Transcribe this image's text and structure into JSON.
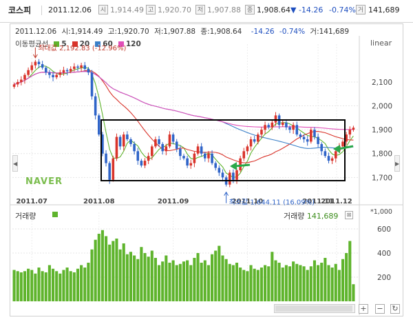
{
  "header": {
    "name": "코스피",
    "date": "2011.12.06",
    "open_badge": "시",
    "open": "1,914.49",
    "high_badge": "고",
    "high": "1,920.70",
    "low_badge": "저",
    "low": "1,907.88",
    "close_badge": "종",
    "close": "1,908.64",
    "change": "▼ -14.26",
    "change_pct": "-0.74%",
    "volume_badge": "거",
    "volume": "141,689"
  },
  "info_row": {
    "date": "2011.12.06",
    "open": "시:1,914.49",
    "high": "고:1,920.70",
    "low": "저:1,907.88",
    "close": "종:1,908.64",
    "change": "-14.26",
    "change_pct": "-0.74%",
    "volume": "거:141,689"
  },
  "legend": {
    "title": "이동평균선",
    "items": [
      {
        "label": "5",
        "color": "#5fb42d"
      },
      {
        "label": "20",
        "color": "#d9342b"
      },
      {
        "label": "60",
        "color": "#3a7fc8"
      },
      {
        "label": "120",
        "color": "#e04fb8"
      }
    ]
  },
  "scale_label": "linear",
  "watermark": "NAVER",
  "annotations": {
    "max_label": "최대값 2,192.83 (-12.96%)",
    "min_label": "최소값 1,644.11 (16.09%)"
  },
  "volume_panel": {
    "title": "거래량",
    "right_label": "거래량",
    "right_value": "141,689",
    "close_icon": "⊠",
    "unit": "*1,000"
  },
  "controls": {
    "left_arrow": "◀",
    "right_arrow": "▶",
    "zoom_in": "+",
    "zoom_out": "−",
    "refresh": "↻"
  },
  "colors": {
    "up": "#d9342b",
    "down": "#2f64c8",
    "volume": "#5fb42d",
    "ma5": "#5fb42d",
    "ma20": "#d9342b",
    "ma60": "#3a7fc8",
    "ma120": "#e04fb8",
    "highlight_box": "#000000",
    "arrows": "#2aa84a"
  },
  "chart_data": [
    {
      "type": "candlestick",
      "title": "코스피",
      "x_ticks": [
        "2011.07",
        "2011.08",
        "2011.09",
        "2011.10",
        "2011.11",
        "2011.12"
      ],
      "y_ticks": [
        1700,
        1800,
        1900,
        2000,
        2100
      ],
      "ylim": [
        1620,
        2230
      ],
      "scale": "linear",
      "grid": true,
      "close_series": [
        2090,
        2100,
        2110,
        2130,
        2150,
        2170,
        2185,
        2175,
        2160,
        2140,
        2130,
        2120,
        2130,
        2140,
        2150,
        2145,
        2155,
        2165,
        2160,
        2170,
        2155,
        2140,
        2040,
        1960,
        1880,
        1800,
        1760,
        1690,
        1780,
        1870,
        1830,
        1880,
        1860,
        1840,
        1810,
        1770,
        1750,
        1770,
        1790,
        1830,
        1860,
        1840,
        1810,
        1830,
        1880,
        1850,
        1820,
        1790,
        1780,
        1750,
        1760,
        1800,
        1830,
        1800,
        1780,
        1800,
        1760,
        1740,
        1720,
        1700,
        1670,
        1720,
        1690,
        1730,
        1780,
        1810,
        1830,
        1860,
        1850,
        1880,
        1900,
        1920,
        1910,
        1930,
        1960,
        1920,
        1930,
        1910,
        1900,
        1920,
        1880,
        1870,
        1860,
        1850,
        1900,
        1870,
        1840,
        1810,
        1790,
        1770,
        1780,
        1810,
        1830,
        1850,
        1880,
        1900,
        1908.64
      ],
      "moving_averages": [
        {
          "name": "5",
          "period": 5
        },
        {
          "name": "20",
          "period": 20
        },
        {
          "name": "60",
          "period": 60
        },
        {
          "name": "120",
          "period": 120
        }
      ],
      "annotations": [
        {
          "text": "최대값 2,192.83 (-12.96%)",
          "value": 2192.83
        },
        {
          "text": "최소값 1,644.11 (16.09%)",
          "value": 1644.11
        }
      ],
      "last_close": 1908.64,
      "last_change": -14.26,
      "last_change_pct": -0.74
    },
    {
      "type": "bar",
      "title": "거래량",
      "unit": "*1,000",
      "y_ticks": [
        200,
        400,
        600
      ],
      "ylim": [
        0,
        680
      ],
      "values": [
        260,
        250,
        240,
        250,
        270,
        260,
        230,
        280,
        250,
        240,
        300,
        270,
        250,
        230,
        260,
        280,
        250,
        240,
        270,
        300,
        280,
        320,
        430,
        510,
        560,
        590,
        540,
        470,
        500,
        520,
        430,
        480,
        390,
        410,
        380,
        350,
        450,
        400,
        370,
        420,
        360,
        300,
        330,
        380,
        320,
        340,
        300,
        310,
        330,
        340,
        300,
        360,
        400,
        320,
        340,
        300,
        390,
        420,
        460,
        380,
        350,
        310,
        300,
        320,
        280,
        260,
        250,
        300,
        270,
        260,
        280,
        300,
        290,
        410,
        340,
        320,
        280,
        300,
        290,
        330,
        310,
        300,
        290,
        260,
        290,
        340,
        300,
        320,
        360,
        300,
        280,
        310,
        260,
        350,
        400,
        500,
        141.689
      ],
      "last_value": 141.689
    }
  ]
}
